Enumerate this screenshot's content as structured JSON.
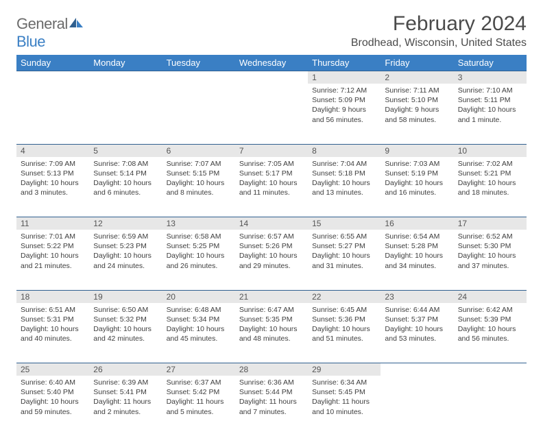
{
  "brand": {
    "part1": "General",
    "part2": "Blue"
  },
  "title": "February 2024",
  "location": "Brodhead, Wisconsin, United States",
  "colors": {
    "header_bg": "#3a7fc4",
    "header_text": "#ffffff",
    "daynum_bg": "#e7e7e7",
    "border": "#2f5f8f",
    "body_text": "#3d3d3d",
    "title_text": "#4a4a4a",
    "logo_gray": "#6b6b6b",
    "logo_blue": "#3a7fc4"
  },
  "day_headers": [
    "Sunday",
    "Monday",
    "Tuesday",
    "Wednesday",
    "Thursday",
    "Friday",
    "Saturday"
  ],
  "weeks": [
    [
      null,
      null,
      null,
      null,
      {
        "n": "1",
        "sr": "7:12 AM",
        "ss": "5:09 PM",
        "dl": "9 hours and 56 minutes."
      },
      {
        "n": "2",
        "sr": "7:11 AM",
        "ss": "5:10 PM",
        "dl": "9 hours and 58 minutes."
      },
      {
        "n": "3",
        "sr": "7:10 AM",
        "ss": "5:11 PM",
        "dl": "10 hours and 1 minute."
      }
    ],
    [
      {
        "n": "4",
        "sr": "7:09 AM",
        "ss": "5:13 PM",
        "dl": "10 hours and 3 minutes."
      },
      {
        "n": "5",
        "sr": "7:08 AM",
        "ss": "5:14 PM",
        "dl": "10 hours and 6 minutes."
      },
      {
        "n": "6",
        "sr": "7:07 AM",
        "ss": "5:15 PM",
        "dl": "10 hours and 8 minutes."
      },
      {
        "n": "7",
        "sr": "7:05 AM",
        "ss": "5:17 PM",
        "dl": "10 hours and 11 minutes."
      },
      {
        "n": "8",
        "sr": "7:04 AM",
        "ss": "5:18 PM",
        "dl": "10 hours and 13 minutes."
      },
      {
        "n": "9",
        "sr": "7:03 AM",
        "ss": "5:19 PM",
        "dl": "10 hours and 16 minutes."
      },
      {
        "n": "10",
        "sr": "7:02 AM",
        "ss": "5:21 PM",
        "dl": "10 hours and 18 minutes."
      }
    ],
    [
      {
        "n": "11",
        "sr": "7:01 AM",
        "ss": "5:22 PM",
        "dl": "10 hours and 21 minutes."
      },
      {
        "n": "12",
        "sr": "6:59 AM",
        "ss": "5:23 PM",
        "dl": "10 hours and 24 minutes."
      },
      {
        "n": "13",
        "sr": "6:58 AM",
        "ss": "5:25 PM",
        "dl": "10 hours and 26 minutes."
      },
      {
        "n": "14",
        "sr": "6:57 AM",
        "ss": "5:26 PM",
        "dl": "10 hours and 29 minutes."
      },
      {
        "n": "15",
        "sr": "6:55 AM",
        "ss": "5:27 PM",
        "dl": "10 hours and 31 minutes."
      },
      {
        "n": "16",
        "sr": "6:54 AM",
        "ss": "5:28 PM",
        "dl": "10 hours and 34 minutes."
      },
      {
        "n": "17",
        "sr": "6:52 AM",
        "ss": "5:30 PM",
        "dl": "10 hours and 37 minutes."
      }
    ],
    [
      {
        "n": "18",
        "sr": "6:51 AM",
        "ss": "5:31 PM",
        "dl": "10 hours and 40 minutes."
      },
      {
        "n": "19",
        "sr": "6:50 AM",
        "ss": "5:32 PM",
        "dl": "10 hours and 42 minutes."
      },
      {
        "n": "20",
        "sr": "6:48 AM",
        "ss": "5:34 PM",
        "dl": "10 hours and 45 minutes."
      },
      {
        "n": "21",
        "sr": "6:47 AM",
        "ss": "5:35 PM",
        "dl": "10 hours and 48 minutes."
      },
      {
        "n": "22",
        "sr": "6:45 AM",
        "ss": "5:36 PM",
        "dl": "10 hours and 51 minutes."
      },
      {
        "n": "23",
        "sr": "6:44 AM",
        "ss": "5:37 PM",
        "dl": "10 hours and 53 minutes."
      },
      {
        "n": "24",
        "sr": "6:42 AM",
        "ss": "5:39 PM",
        "dl": "10 hours and 56 minutes."
      }
    ],
    [
      {
        "n": "25",
        "sr": "6:40 AM",
        "ss": "5:40 PM",
        "dl": "10 hours and 59 minutes."
      },
      {
        "n": "26",
        "sr": "6:39 AM",
        "ss": "5:41 PM",
        "dl": "11 hours and 2 minutes."
      },
      {
        "n": "27",
        "sr": "6:37 AM",
        "ss": "5:42 PM",
        "dl": "11 hours and 5 minutes."
      },
      {
        "n": "28",
        "sr": "6:36 AM",
        "ss": "5:44 PM",
        "dl": "11 hours and 7 minutes."
      },
      {
        "n": "29",
        "sr": "6:34 AM",
        "ss": "5:45 PM",
        "dl": "11 hours and 10 minutes."
      },
      null,
      null
    ]
  ],
  "labels": {
    "sunrise": "Sunrise: ",
    "sunset": "Sunset: ",
    "daylight": "Daylight: "
  }
}
